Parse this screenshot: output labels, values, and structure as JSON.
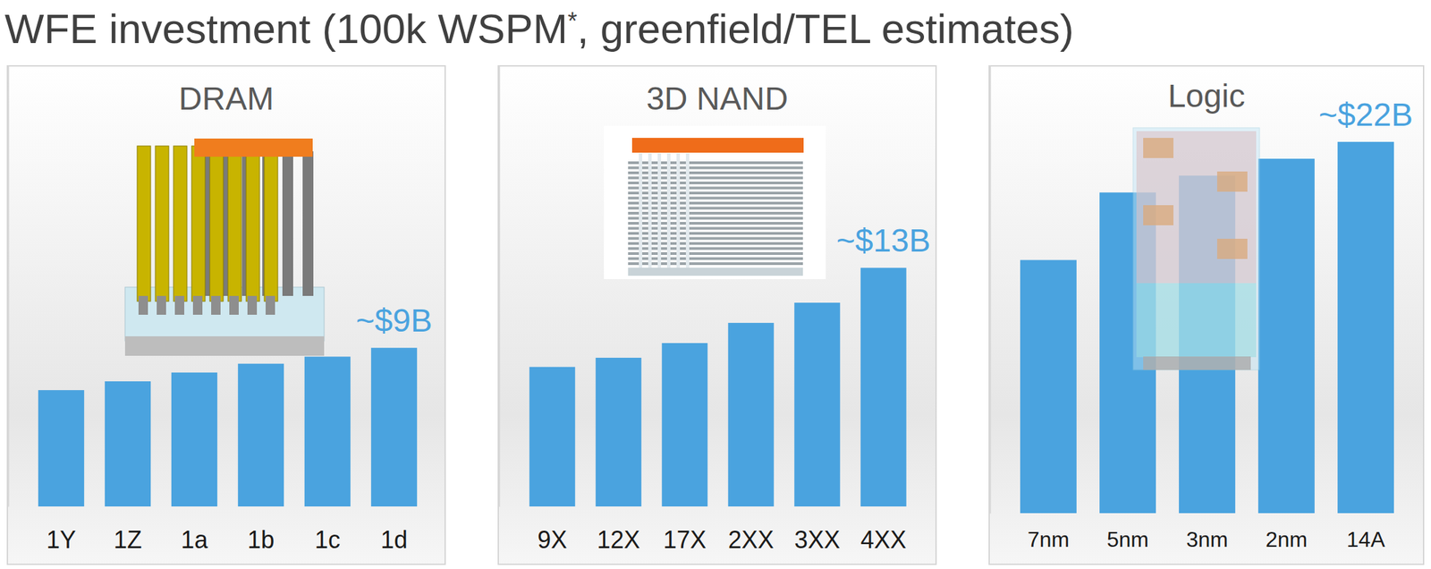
{
  "title": "WFE investment (100k WSPM*, greenfield/TEL estimates)",
  "chart_data": [
    {
      "type": "bar",
      "title": "DRAM",
      "categories": [
        "1Y",
        "1Z",
        "1a",
        "1b",
        "1c",
        "1d"
      ],
      "values": [
        6.6,
        7.1,
        7.6,
        8.1,
        8.5,
        9
      ],
      "color": "#4aa3df",
      "ylim": [
        0,
        25
      ],
      "yticks": [],
      "tick_labels": "x",
      "annotations": [
        {
          "text": "~$9B",
          "x": "1d"
        }
      ]
    },
    {
      "type": "bar",
      "title": "3D NAND",
      "categories": [
        "9X",
        "12X",
        "17X",
        "2XX",
        "3XX",
        "4XX"
      ],
      "values": [
        7.6,
        8.1,
        8.9,
        10,
        11.1,
        13
      ],
      "color": "#4aa3df",
      "ylim": [
        0,
        24
      ],
      "yticks": [],
      "tick_labels": "x",
      "annotations": [
        {
          "text": "~$13B",
          "x": "4XX"
        }
      ]
    },
    {
      "type": "bar",
      "title": "Logic",
      "categories": [
        "7nm",
        "5nm",
        "3nm",
        "2nm",
        "14A"
      ],
      "values": [
        15,
        19,
        20,
        21,
        22
      ],
      "color": "#4aa3df",
      "ylim": [
        0,
        26.5
      ],
      "yticks": [],
      "tick_labels": "x",
      "annotations": [
        {
          "text": "~$22B",
          "x": "14A"
        }
      ]
    }
  ]
}
